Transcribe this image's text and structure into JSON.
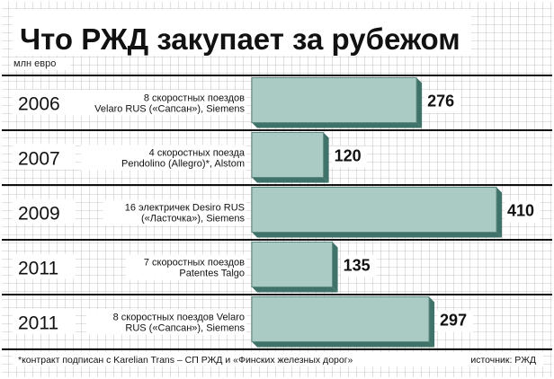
{
  "title": "Что РЖД закупает за рубежом",
  "unit": "млн евро",
  "footnote": "*контракт подписан с Karelian Trans – СП РЖД и «Финских железных дорог»",
  "source": "источник: РЖД",
  "colors": {
    "bar_face": "#a9cbc4",
    "bar_edge": "#5e8a83",
    "bar_shadow": "#3f7268",
    "grid": "#b3b3b3",
    "rule": "#111111",
    "background": "#ffffff"
  },
  "chart_data": {
    "type": "bar",
    "orientation": "horizontal",
    "title": "Что РЖД закупает за рубежом",
    "unit": "млн евро",
    "grid": true,
    "rows": [
      {
        "year": "2006",
        "desc_lines": [
          "8 скоростных поездов",
          "Velaro RUS («Сапсан»), Siemens"
        ],
        "value": 276
      },
      {
        "year": "2007",
        "desc_lines": [
          "4 скоростных поезда",
          "Pendolino (Allegro)*, Alstom"
        ],
        "value": 120
      },
      {
        "year": "2009",
        "desc_lines": [
          "16 электричек Desiro RUS",
          "(«Ласточка»), Siemens"
        ],
        "value": 410
      },
      {
        "year": "2011",
        "desc_lines": [
          "7 скоростных поездов",
          "Patentes Talgo"
        ],
        "value": 135
      },
      {
        "year": "2011",
        "desc_lines": [
          "8 скоростных поездов Velaro",
          "RUS («Сапсан»), Siemens"
        ],
        "value": 297
      }
    ]
  }
}
